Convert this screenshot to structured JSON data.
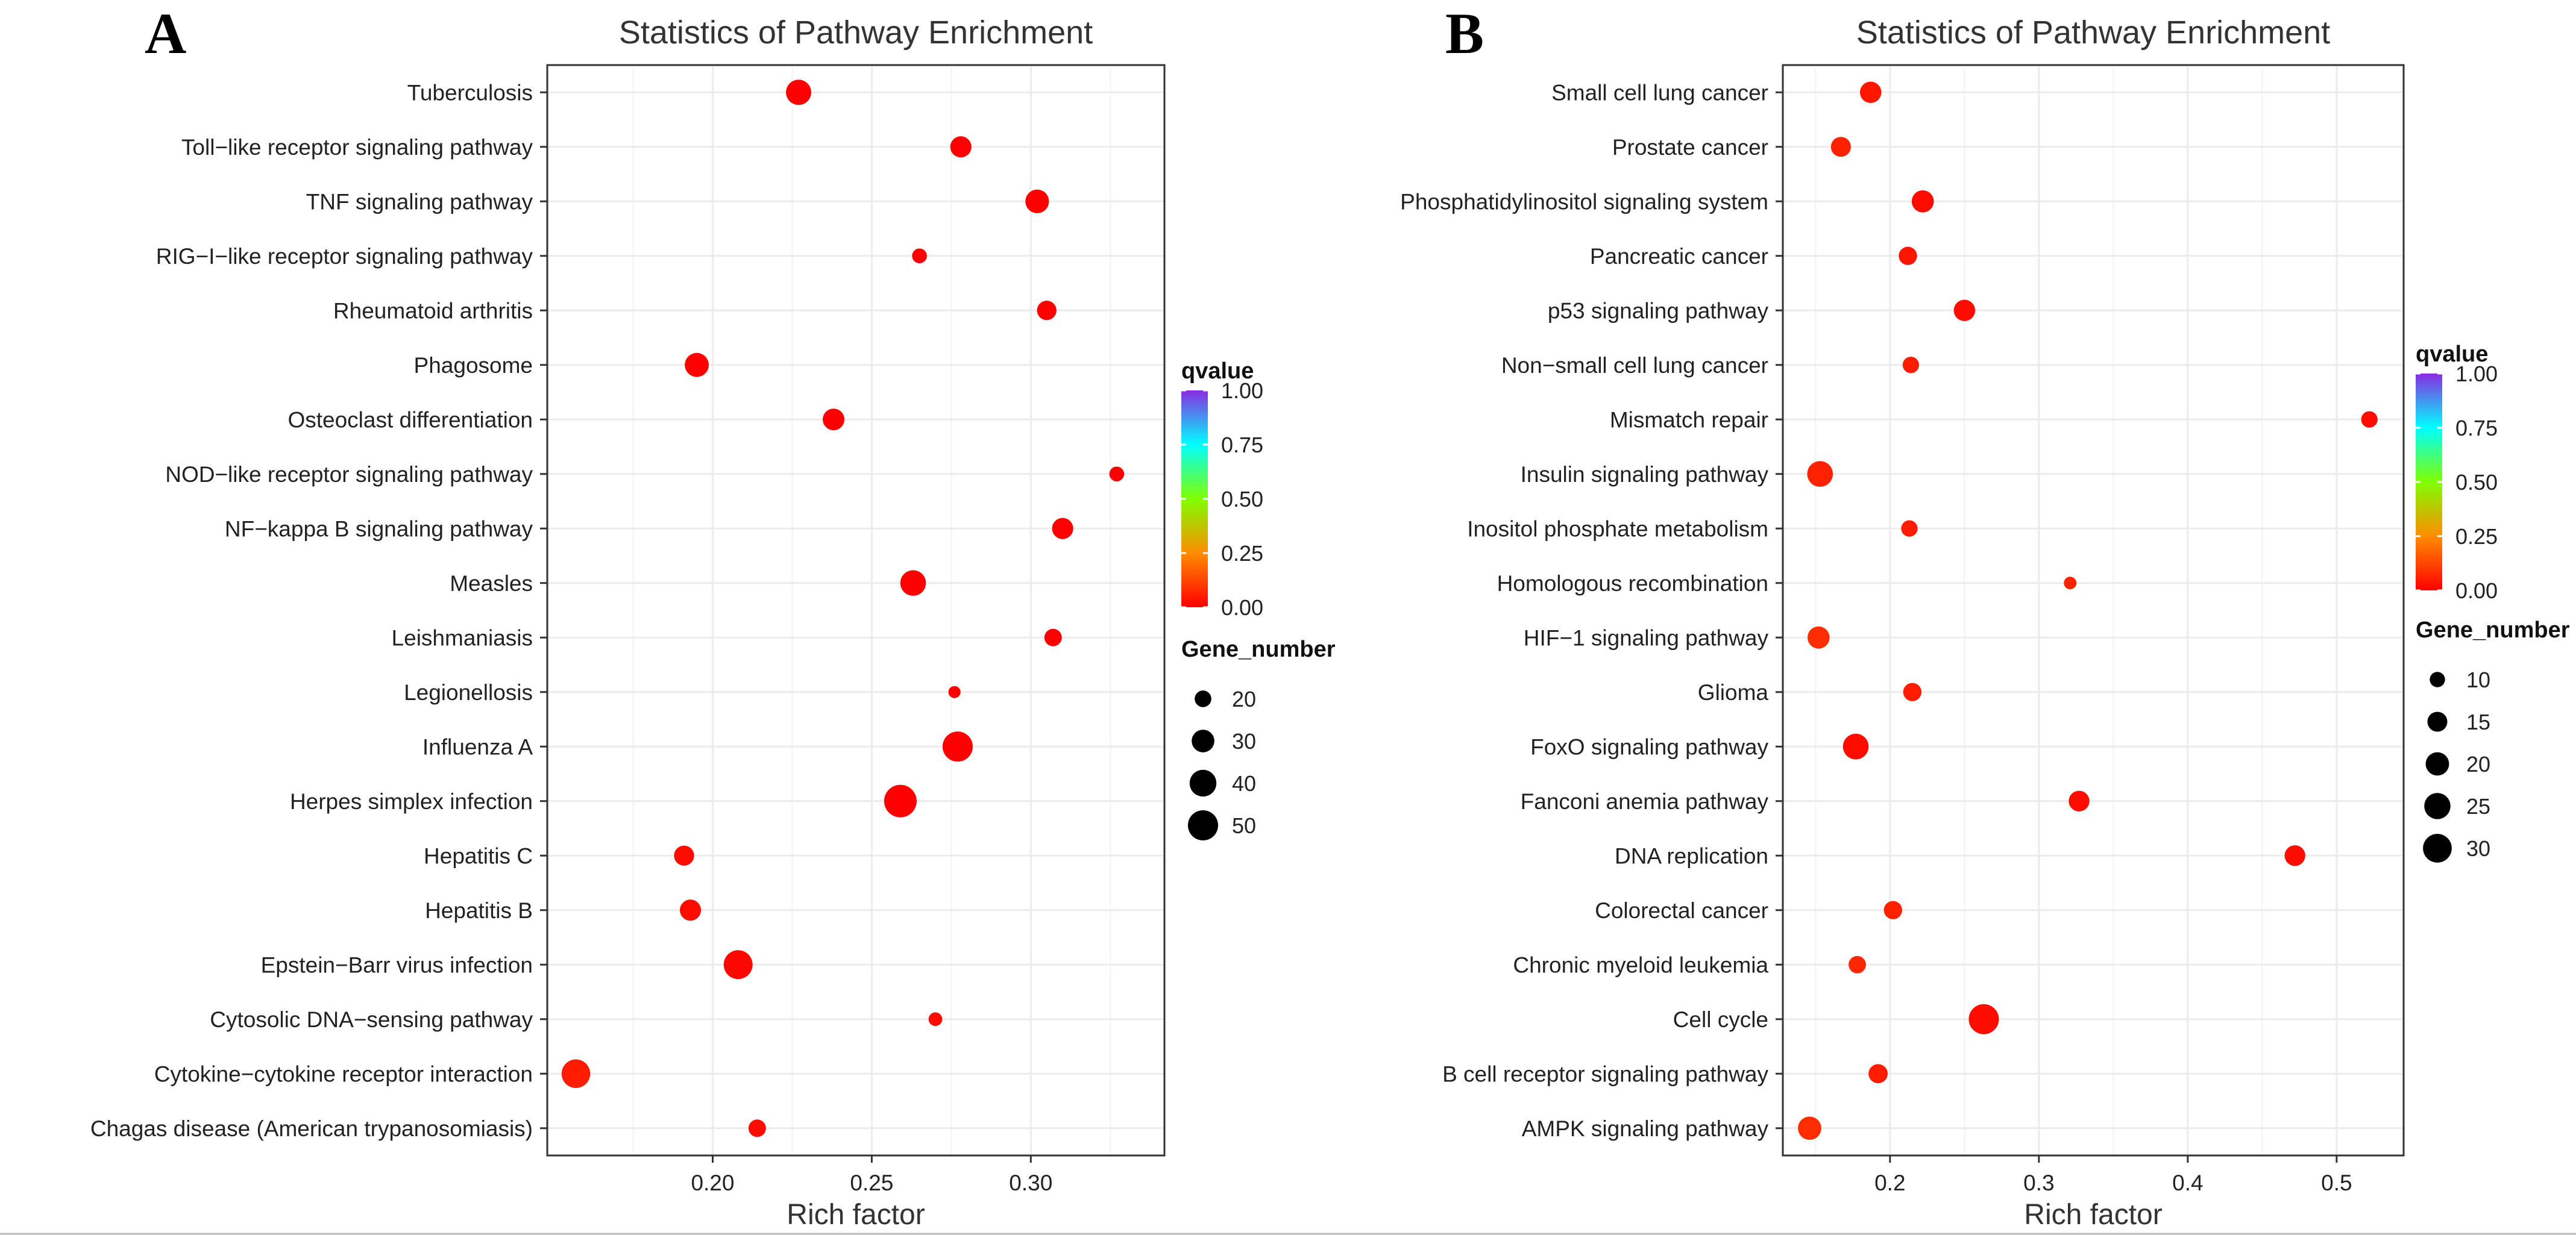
{
  "chart_data": [
    {
      "panel_label": "A",
      "type": "scatter",
      "title": "Statistics of Pathway Enrichment",
      "xlabel": "Rich factor",
      "ylabel": "",
      "xlim": [
        0.148,
        0.342
      ],
      "xticks": [
        0.2,
        0.25,
        0.3
      ],
      "xtick_labels": [
        "0.20",
        "0.25",
        "0.30"
      ],
      "grid": true,
      "categories": [
        "Tuberculosis",
        "Toll−like receptor signaling pathway",
        "TNF signaling pathway",
        "RIG−I−like receptor signaling pathway",
        "Rheumatoid arthritis",
        "Phagosome",
        "Osteoclast differentiation",
        "NOD−like receptor signaling pathway",
        "NF−kappa B signaling pathway",
        "Measles",
        "Leishmaniasis",
        "Legionellosis",
        "Influenza A",
        "Herpes simplex infection",
        "Hepatitis C",
        "Hepatitis B",
        "Epstein−Barr virus infection",
        "Cytosolic DNA−sensing pathway",
        "Cytokine−cytokine receptor interaction",
        "Chagas disease (American trypanosomiasis)"
      ],
      "points": [
        {
          "pathway": "Tuberculosis",
          "rich_factor": 0.227,
          "gene_number": 36,
          "qvalue": 0.0
        },
        {
          "pathway": "Toll−like receptor signaling pathway",
          "rich_factor": 0.278,
          "gene_number": 27,
          "qvalue": 0.0
        },
        {
          "pathway": "TNF signaling pathway",
          "rich_factor": 0.302,
          "gene_number": 32,
          "qvalue": 0.0
        },
        {
          "pathway": "RIG−I−like receptor signaling pathway",
          "rich_factor": 0.265,
          "gene_number": 18,
          "qvalue": 0.0
        },
        {
          "pathway": "Rheumatoid arthritis",
          "rich_factor": 0.305,
          "gene_number": 24,
          "qvalue": 0.0
        },
        {
          "pathway": "Phagosome",
          "rich_factor": 0.195,
          "gene_number": 33,
          "qvalue": 0.0
        },
        {
          "pathway": "Osteoclast differentiation",
          "rich_factor": 0.238,
          "gene_number": 28,
          "qvalue": 0.0
        },
        {
          "pathway": "NOD−like receptor signaling pathway",
          "rich_factor": 0.327,
          "gene_number": 18,
          "qvalue": 0.0
        },
        {
          "pathway": "NF−kappa B signaling pathway",
          "rich_factor": 0.31,
          "gene_number": 27,
          "qvalue": 0.0
        },
        {
          "pathway": "Measles",
          "rich_factor": 0.263,
          "gene_number": 37,
          "qvalue": 0.0
        },
        {
          "pathway": "Leishmaniasis",
          "rich_factor": 0.307,
          "gene_number": 21,
          "qvalue": 0.0
        },
        {
          "pathway": "Legionellosis",
          "rich_factor": 0.276,
          "gene_number": 16,
          "qvalue": 0.0
        },
        {
          "pathway": "Influenza A",
          "rich_factor": 0.277,
          "gene_number": 50,
          "qvalue": 0.0
        },
        {
          "pathway": "Herpes simplex infection",
          "rich_factor": 0.259,
          "gene_number": 58,
          "qvalue": 0.0
        },
        {
          "pathway": "Hepatitis C",
          "rich_factor": 0.191,
          "gene_number": 25,
          "qvalue": 0.02
        },
        {
          "pathway": "Hepatitis B",
          "rich_factor": 0.193,
          "gene_number": 27,
          "qvalue": 0.02
        },
        {
          "pathway": "Epstein−Barr virus infection",
          "rich_factor": 0.208,
          "gene_number": 46,
          "qvalue": 0.01
        },
        {
          "pathway": "Cytosolic DNA−sensing pathway",
          "rich_factor": 0.27,
          "gene_number": 17,
          "qvalue": 0.02
        },
        {
          "pathway": "Cytokine−cytokine receptor interaction",
          "rich_factor": 0.157,
          "gene_number": 45,
          "qvalue": 0.05
        },
        {
          "pathway": "Chagas disease (American trypanosomiasis)",
          "rich_factor": 0.214,
          "gene_number": 21,
          "qvalue": 0.02
        }
      ],
      "color_legend": {
        "title": "qvalue",
        "ticks": [
          "1.00",
          "0.75",
          "0.50",
          "0.25",
          "0.00"
        ],
        "range": [
          0,
          1
        ]
      },
      "size_legend": {
        "title": "Gene_number",
        "values": [
          20,
          30,
          40,
          50
        ],
        "labels": [
          "20",
          "30",
          "40",
          "50"
        ]
      },
      "size_scale": {
        "min": 15,
        "max": 58
      }
    },
    {
      "panel_label": "B",
      "type": "scatter",
      "title": "Statistics of Pathway Enrichment",
      "xlabel": "Rich factor",
      "ylabel": "",
      "xlim": [
        0.128,
        0.545
      ],
      "xticks": [
        0.2,
        0.3,
        0.4,
        0.5
      ],
      "xtick_labels": [
        "0.2",
        "0.3",
        "0.4",
        "0.5"
      ],
      "grid": true,
      "categories": [
        "Small cell lung cancer",
        "Prostate cancer",
        "Phosphatidylinositol signaling system",
        "Pancreatic cancer",
        "p53 signaling pathway",
        "Non−small cell lung cancer",
        "Mismatch repair",
        "Insulin signaling pathway",
        "Inositol phosphate metabolism",
        "Homologous recombination",
        "HIF−1 signaling pathway",
        "Glioma",
        "FoxO signaling pathway",
        "Fanconi anemia pathway",
        "DNA replication",
        "Colorectal cancer",
        "Chronic myeloid leukemia",
        "Cell cycle",
        "B cell receptor signaling pathway",
        "AMPK signaling pathway"
      ],
      "points": [
        {
          "pathway": "Small cell lung cancer",
          "rich_factor": 0.187,
          "gene_number": 17,
          "qvalue": 0.04
        },
        {
          "pathway": "Prostate cancer",
          "rich_factor": 0.167,
          "gene_number": 15,
          "qvalue": 0.06
        },
        {
          "pathway": "Phosphatidylinositol signaling system",
          "rich_factor": 0.222,
          "gene_number": 18,
          "qvalue": 0.02
        },
        {
          "pathway": "Pancreatic cancer",
          "rich_factor": 0.212,
          "gene_number": 13,
          "qvalue": 0.04
        },
        {
          "pathway": "p53 signaling pathway",
          "rich_factor": 0.25,
          "gene_number": 17,
          "qvalue": 0.02
        },
        {
          "pathway": "Non−small cell lung cancer",
          "rich_factor": 0.214,
          "gene_number": 11,
          "qvalue": 0.05
        },
        {
          "pathway": "Mismatch repair",
          "rich_factor": 0.522,
          "gene_number": 11,
          "qvalue": 0.02
        },
        {
          "pathway": "Insulin signaling pathway",
          "rich_factor": 0.153,
          "gene_number": 24,
          "qvalue": 0.06
        },
        {
          "pathway": "Inositol phosphate metabolism",
          "rich_factor": 0.213,
          "gene_number": 11,
          "qvalue": 0.05
        },
        {
          "pathway": "Homologous recombination",
          "rich_factor": 0.321,
          "gene_number": 8,
          "qvalue": 0.06
        },
        {
          "pathway": "HIF−1 signaling pathway",
          "rich_factor": 0.152,
          "gene_number": 18,
          "qvalue": 0.08
        },
        {
          "pathway": "Glioma",
          "rich_factor": 0.215,
          "gene_number": 13,
          "qvalue": 0.05
        },
        {
          "pathway": "FoxO signaling pathway",
          "rich_factor": 0.177,
          "gene_number": 24,
          "qvalue": 0.02
        },
        {
          "pathway": "Fanconi anemia pathway",
          "rich_factor": 0.327,
          "gene_number": 16,
          "qvalue": 0.02
        },
        {
          "pathway": "DNA replication",
          "rich_factor": 0.472,
          "gene_number": 16,
          "qvalue": 0.02
        },
        {
          "pathway": "Colorectal cancer",
          "rich_factor": 0.202,
          "gene_number": 13,
          "qvalue": 0.06
        },
        {
          "pathway": "Chronic myeloid leukemia",
          "rich_factor": 0.178,
          "gene_number": 12,
          "qvalue": 0.07
        },
        {
          "pathway": "Cell cycle",
          "rich_factor": 0.263,
          "gene_number": 33,
          "qvalue": 0.02
        },
        {
          "pathway": "B cell receptor signaling pathway",
          "rich_factor": 0.192,
          "gene_number": 14,
          "qvalue": 0.05
        },
        {
          "pathway": "AMPK signaling pathway",
          "rich_factor": 0.146,
          "gene_number": 20,
          "qvalue": 0.08
        }
      ],
      "color_legend": {
        "title": "qvalue",
        "ticks": [
          "1.00",
          "0.75",
          "0.50",
          "0.25",
          "0.00"
        ],
        "range": [
          0,
          1
        ]
      },
      "size_legend": {
        "title": "Gene_number",
        "values": [
          10,
          15,
          20,
          25,
          30
        ],
        "labels": [
          "10",
          "15",
          "20",
          "25",
          "30"
        ]
      },
      "size_scale": {
        "min": 6,
        "max": 33
      }
    }
  ],
  "colors": {
    "background": "#ffffff",
    "panel_border": "#333333",
    "grid": "#ebebeb",
    "tick_text": "#222222",
    "title_text": "#333333",
    "point_fill": "#ff0000",
    "qvalue_gradient": [
      "#ff0000",
      "#ff8c00",
      "#7fff00",
      "#00ffff",
      "#8a2be2"
    ]
  }
}
